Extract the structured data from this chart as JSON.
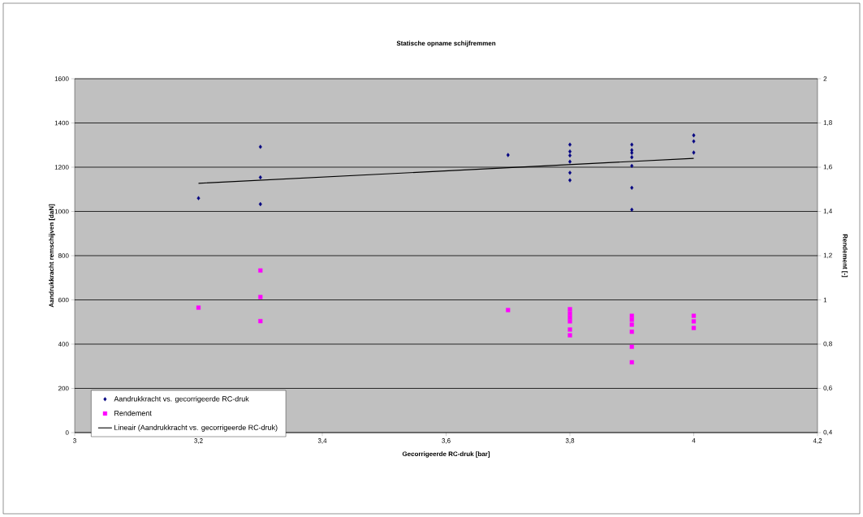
{
  "chart_data": {
    "type": "scatter",
    "title": "Statische opname schijfremmen",
    "xlabel": "Gecorrigeerde RC-druk [bar]",
    "ylabel": "Aandrukkracht remschijven [daN]",
    "y2label": "Rendement [-]",
    "xlim": [
      3,
      4.2
    ],
    "xticks": [
      3,
      {
        "value": 3.2,
        "label": "3,2"
      },
      {
        "value": 3.4,
        "label": "3,4"
      },
      {
        "value": 3.6,
        "label": "3,6"
      },
      {
        "value": 3.8,
        "label": "3,8"
      },
      4,
      {
        "value": 4.2,
        "label": "4,2"
      }
    ],
    "ylim": [
      0,
      1600
    ],
    "yticks": [
      0,
      200,
      400,
      600,
      800,
      1000,
      1200,
      1400,
      1600
    ],
    "y2lim": [
      0.4,
      2
    ],
    "y2ticks": [
      {
        "value": 0.4,
        "label": "0,4"
      },
      {
        "value": 0.6,
        "label": "0,6"
      },
      {
        "value": 0.8,
        "label": "0,8"
      },
      1,
      {
        "value": 1.2,
        "label": "1,2"
      },
      {
        "value": 1.4,
        "label": "1,4"
      },
      {
        "value": 1.6,
        "label": "1,6"
      },
      {
        "value": 1.8,
        "label": "1,8"
      },
      2
    ],
    "grid": "y",
    "legend": "bottom left",
    "series": [
      {
        "name": "Aandrukkracht vs. gecorrigeerde RC-druk",
        "marker": "diamond",
        "color": "#000080",
        "x": [
          3.2,
          3.3,
          3.3,
          3.3,
          3.7,
          3.8,
          3.8,
          3.8,
          3.8,
          3.8,
          3.8,
          3.9,
          3.9,
          3.9,
          3.9,
          3.9,
          3.9,
          3.9,
          4.0,
          4.0,
          4.0
        ],
        "values": [
          1060,
          1292,
          1154,
          1033,
          1255,
          1302,
          1271,
          1253,
          1225,
          1175,
          1141,
          1302,
          1277,
          1265,
          1245,
          1206,
          1107,
          1008,
          1344,
          1317,
          1266
        ]
      },
      {
        "name": "Rendement",
        "marker": "square",
        "color": "#ff00ff",
        "axis": "y2",
        "x": [
          3.2,
          3.3,
          3.3,
          3.3,
          3.7,
          3.8,
          3.8,
          3.8,
          3.8,
          3.8,
          3.8,
          3.9,
          3.9,
          3.9,
          3.9,
          3.9,
          3.9,
          4.0,
          4.0,
          4.0
        ],
        "values": [
          0.965,
          1.133,
          1.013,
          0.904,
          0.954,
          0.958,
          0.939,
          0.921,
          0.903,
          0.866,
          0.84,
          0.928,
          0.91,
          0.888,
          0.856,
          0.788,
          0.718,
          0.928,
          0.903,
          0.873
        ]
      },
      {
        "name": "Lineair (Aandrukkracht vs. gecorrigeerde RC-druk)",
        "type": "line",
        "marker": "none",
        "line_style": "solid",
        "color": "#000000",
        "x": [
          3.2,
          4.0
        ],
        "values": [
          1127,
          1240
        ]
      }
    ]
  }
}
